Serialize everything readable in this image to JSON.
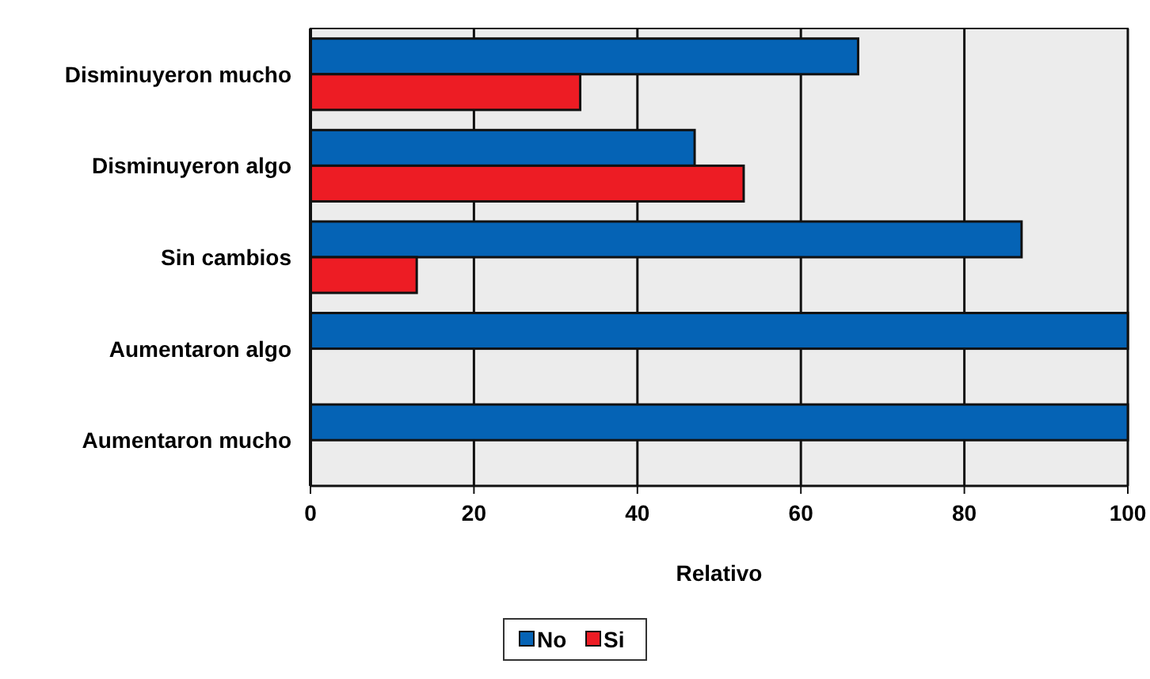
{
  "chart_data": {
    "type": "bar",
    "orientation": "horizontal",
    "xlabel": "Relativo",
    "categories": [
      "Disminuyeron mucho",
      "Disminuyeron algo",
      "Sin cambios",
      "Aumentaron algo",
      "Aumentaron mucho"
    ],
    "series": [
      {
        "name": "No",
        "color": "#0563b5",
        "values": [
          67,
          47,
          87,
          100,
          100
        ]
      },
      {
        "name": "Si",
        "color": "#ed1c24",
        "values": [
          33,
          53,
          13,
          0,
          0
        ]
      }
    ],
    "xlim": [
      0,
      100
    ],
    "xticks": [
      0,
      20,
      40,
      60,
      80,
      100
    ],
    "grid": "x",
    "legend": "bottom"
  }
}
